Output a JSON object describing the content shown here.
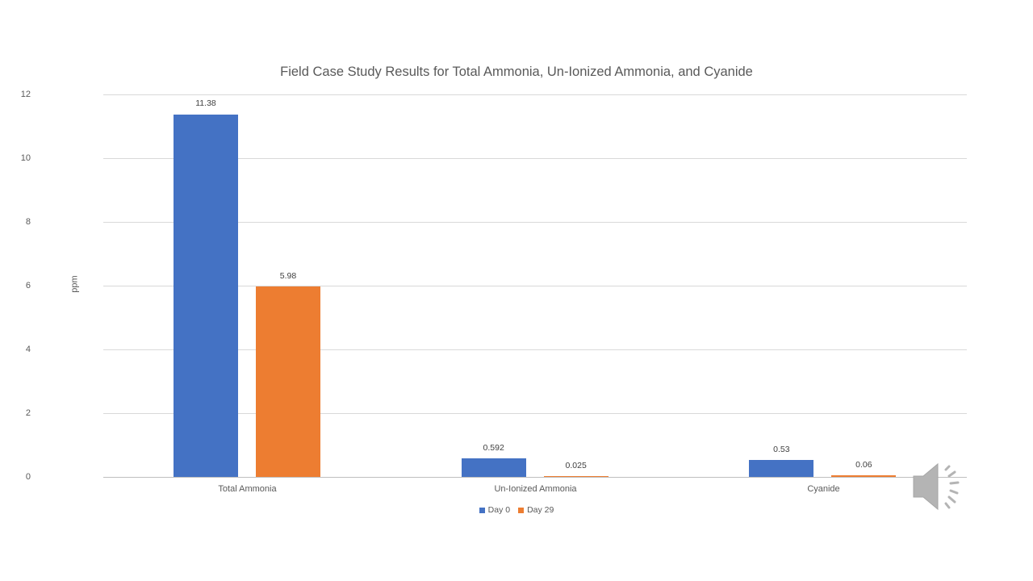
{
  "chart_data": {
    "type": "bar",
    "title": "Field Case Study Results for Total Ammonia, Un-Ionized Ammonia, and Cyanide",
    "xlabel": "",
    "ylabel": "ppm",
    "ylim": [
      0,
      12
    ],
    "yticks": [
      "0",
      "2",
      "4",
      "6",
      "8",
      "10",
      "12"
    ],
    "grid": true,
    "legend_position": "bottom",
    "categories": [
      "Total Ammonia",
      "Un-Ionized Ammonia",
      "Cyanide"
    ],
    "series": [
      {
        "name": "Day 0",
        "color": "#4472c4",
        "values": [
          11.38,
          0.592,
          0.53
        ],
        "labels": [
          "11.38",
          "0.592",
          "0.53"
        ]
      },
      {
        "name": "Day 29",
        "color": "#ed7d31",
        "values": [
          5.98,
          0.025,
          0.06
        ],
        "labels": [
          "5.98",
          "0.025",
          "0.06"
        ]
      }
    ]
  },
  "icons": {
    "audio": "speaker-icon"
  }
}
